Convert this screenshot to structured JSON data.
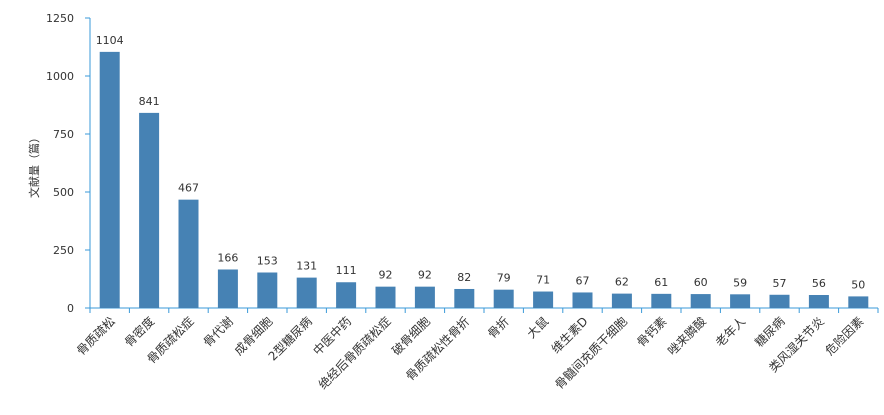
{
  "chart_data": {
    "type": "bar",
    "ylabel": "文献量（篇）",
    "ylim": [
      0,
      1250
    ],
    "yticks": [
      0,
      250,
      500,
      750,
      1000,
      1250
    ],
    "grid": false,
    "categories": [
      "骨质疏松",
      "骨密度",
      "骨质疏松症",
      "骨代谢",
      "成骨细胞",
      "2型糖尿病",
      "中医中药",
      "绝经后骨质疏松症",
      "破骨细胞",
      "骨质疏松性骨折",
      "骨折",
      "大鼠",
      "维生素D",
      "骨髓间充质干细胞",
      "骨钙素",
      "唑来膦酸",
      "老年人",
      "糖尿病",
      "类风湿关节炎",
      "危险因素"
    ],
    "values": [
      1104,
      841,
      467,
      166,
      153,
      131,
      111,
      92,
      92,
      82,
      79,
      71,
      67,
      62,
      61,
      60,
      59,
      57,
      56,
      50
    ],
    "colors": {
      "bar": "#4682b4",
      "axis": "#3a9ad9",
      "text": "#333333"
    }
  }
}
